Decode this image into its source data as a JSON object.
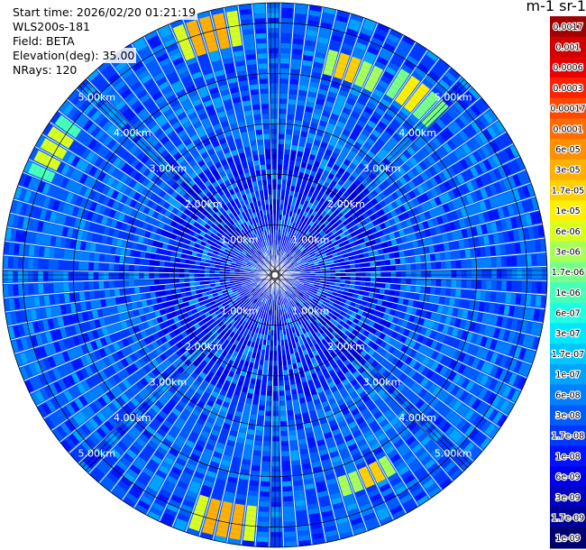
{
  "info": {
    "start_time": "Start time: 2026/02/20 01:21:19",
    "instrument": "WLS200s-181",
    "field": "Field: BETA",
    "elevation": "Elevation(deg): 35.00",
    "nrays": "NRays: 120"
  },
  "colorbar": {
    "unit_label": "m-1 sr-1",
    "labels": [
      "0.0017",
      "0.001",
      "0.0006",
      "0.0003",
      "0.00017",
      "0.0001",
      "6e-05",
      "3e-05",
      "1.7e-05",
      "1e-05",
      "6e-06",
      "3e-06",
      "1.7e-06",
      "1e-06",
      "6e-07",
      "3e-07",
      "1.7e-07",
      "1e-07",
      "6e-08",
      "3e-08",
      "1.7e-08",
      "1e-08",
      "6e-09",
      "3e-09",
      "1.7e-09",
      "1e-09"
    ],
    "colors": [
      "#a00000",
      "#d00000",
      "#e80000",
      "#ff2000",
      "#ff4800",
      "#ff6c00",
      "#ff9000",
      "#ffb000",
      "#ffd000",
      "#fff000",
      "#d8ff20",
      "#a8ff58",
      "#78ff88",
      "#48ffb8",
      "#20ffe0",
      "#00e8ff",
      "#00c8ff",
      "#00a4ff",
      "#0080ff",
      "#005cff",
      "#0038ff",
      "#0014ff",
      "#0000e8",
      "#0000c0",
      "#000098",
      "#000070"
    ]
  },
  "chart_data": {
    "type": "heatmap",
    "projection": "polar PPI scan (plan position indicator)",
    "nrays": 120,
    "range_unit": "km",
    "rings_km": [
      1,
      2,
      3,
      4,
      5
    ],
    "ring_labels": [
      "1.00km",
      "2.00km",
      "3.00km",
      "4.00km",
      "5.00km"
    ],
    "max_range_km": 5.4,
    "color_scale": "log",
    "value_range": [
      1e-09,
      0.0017
    ],
    "background_level": "3e-08",
    "grid": true,
    "features": [
      {
        "az_deg": 20,
        "range_km": [
          4.1,
          4.5
        ],
        "level": "1.7e-05"
      },
      {
        "az_deg": 38,
        "range_km": [
          4.2,
          4.7
        ],
        "level": "1e-05"
      },
      {
        "az_deg": 345,
        "range_km": [
          4.6,
          5.2
        ],
        "level": "3e-05"
      },
      {
        "az_deg": 300,
        "range_km": [
          4.8,
          5.3
        ],
        "level": "6e-06"
      },
      {
        "az_deg": 155,
        "range_km": [
          4.2,
          4.5
        ],
        "level": "1.7e-05"
      },
      {
        "az_deg": 192,
        "range_km": [
          4.6,
          5.2
        ],
        "level": "3e-05"
      }
    ]
  }
}
